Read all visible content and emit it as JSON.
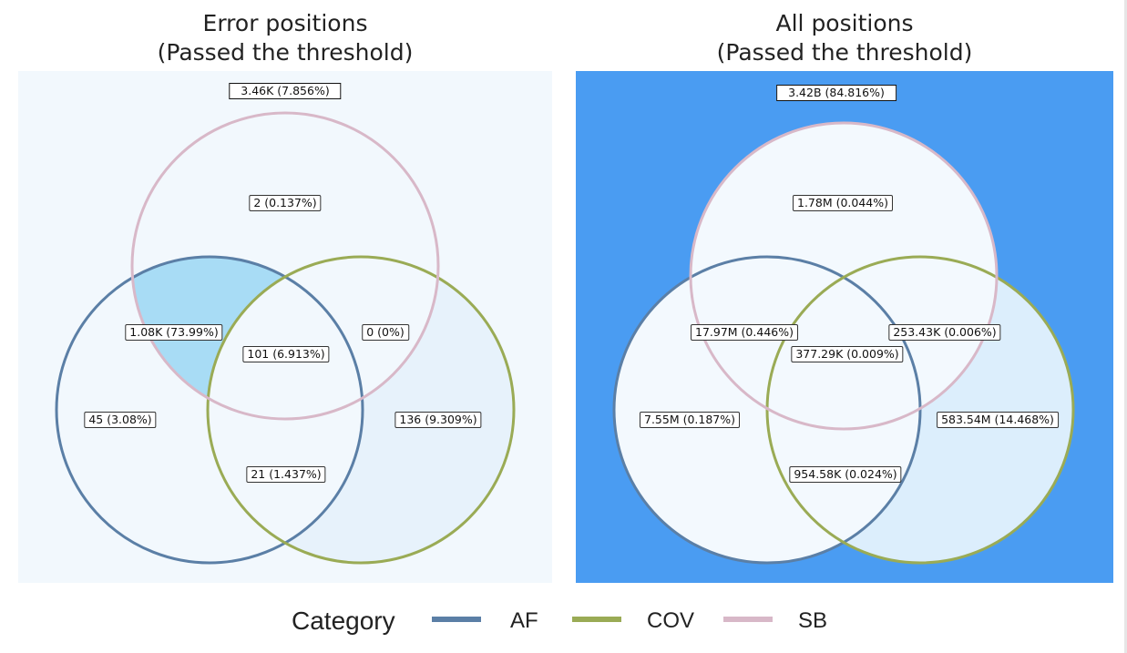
{
  "colors": {
    "AF": "#5b7fa6",
    "COV": "#9aab55",
    "SB": "#d8b8c8",
    "left_bg": "#f2f8fd",
    "right_bg": "#4a9cf2",
    "fill_light": "#eef6fc",
    "fill_mid": "#e0effb",
    "fill_high": "#a8dcf5"
  },
  "panels": [
    {
      "title_line1": "Error positions",
      "title_line2": "(Passed the threshold)",
      "outside": "3.46K (7.856%)",
      "regions": {
        "sb_only": "2 (0.137%)",
        "af_sb": "1.08K (73.99%)",
        "cov_sb": "0 (0%)",
        "all": "101 (6.913%)",
        "af_only": "45 (3.08%)",
        "cov_only": "136 (9.309%)",
        "af_cov": "21 (1.437%)"
      }
    },
    {
      "title_line1": "All positions",
      "title_line2": "(Passed the threshold)",
      "outside": "3.42B (84.816%)",
      "regions": {
        "sb_only": "1.78M (0.044%)",
        "af_sb": "17.97M (0.446%)",
        "cov_sb": "253.43K (0.006%)",
        "all": "377.29K (0.009%)",
        "af_only": "7.55M (0.187%)",
        "cov_only": "583.54M (14.468%)",
        "af_cov": "954.58K (0.024%)"
      }
    }
  ],
  "legend": {
    "title": "Category",
    "items": [
      {
        "label": "AF",
        "color": "#5b7fa6"
      },
      {
        "label": "COV",
        "color": "#9aab55"
      },
      {
        "label": "SB",
        "color": "#d8b8c8"
      }
    ]
  }
}
